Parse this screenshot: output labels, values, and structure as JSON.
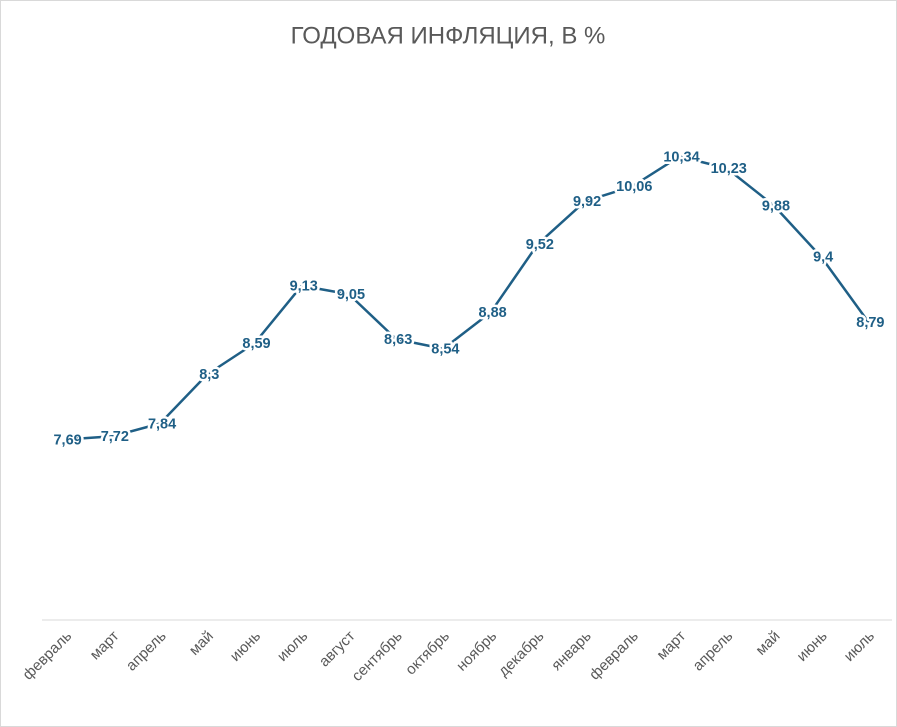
{
  "chart_data": {
    "type": "line",
    "title": "ГОДОВАЯ ИНФЛЯЦИЯ, В %",
    "categories": [
      "февраль",
      "март",
      "апрель",
      "май",
      "июнь",
      "июль",
      "август",
      "сентябрь",
      "октябрь",
      "ноябрь",
      "декабрь",
      "январь",
      "февраль",
      "март",
      "апрель",
      "май",
      "июнь",
      "июль"
    ],
    "values": [
      7.69,
      7.72,
      7.84,
      8.3,
      8.59,
      9.13,
      9.05,
      8.63,
      8.54,
      8.88,
      9.52,
      9.92,
      10.06,
      10.34,
      10.23,
      9.88,
      9.4,
      8.79
    ],
    "value_labels": [
      "7,69",
      "7,72",
      "7,84",
      "8,3",
      "8,59",
      "9,13",
      "9,05",
      "8,63",
      "8,54",
      "8,88",
      "9,52",
      "9,92",
      "10,06",
      "10,34",
      "10,23",
      "9,88",
      "9,4",
      "8,79"
    ],
    "color": "#1f5f86",
    "ylim": [
      6,
      11
    ]
  }
}
